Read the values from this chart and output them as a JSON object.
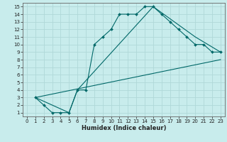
{
  "title": "",
  "xlabel": "Humidex (Indice chaleur)",
  "ylabel": "",
  "background_color": "#c8ecec",
  "grid_color": "#b0d8d8",
  "line_color": "#006868",
  "xlim": [
    -0.5,
    23.5
  ],
  "ylim": [
    0.5,
    15.5
  ],
  "xticks": [
    0,
    1,
    2,
    3,
    4,
    5,
    6,
    7,
    8,
    9,
    10,
    11,
    12,
    13,
    14,
    15,
    16,
    17,
    18,
    19,
    20,
    21,
    22,
    23
  ],
  "yticks": [
    1,
    2,
    3,
    4,
    5,
    6,
    7,
    8,
    9,
    10,
    11,
    12,
    13,
    14,
    15
  ],
  "line1_x": [
    1,
    2,
    3,
    4,
    5,
    6,
    7,
    8,
    9,
    10,
    11,
    12,
    13,
    14,
    15,
    16,
    17,
    18,
    19,
    20,
    21,
    22,
    23
  ],
  "line1_y": [
    3,
    2,
    1,
    1,
    1,
    4,
    4,
    10,
    11,
    12,
    14,
    14,
    14,
    15,
    15,
    14,
    13,
    12,
    11,
    10,
    10,
    9,
    9
  ],
  "line2_x": [
    1,
    5,
    6,
    15,
    20,
    23
  ],
  "line2_y": [
    3,
    1,
    4,
    15,
    11,
    9
  ],
  "line3_x": [
    1,
    23
  ],
  "line3_y": [
    3,
    8
  ],
  "xlabel_fontsize": 6,
  "tick_fontsize": 5
}
